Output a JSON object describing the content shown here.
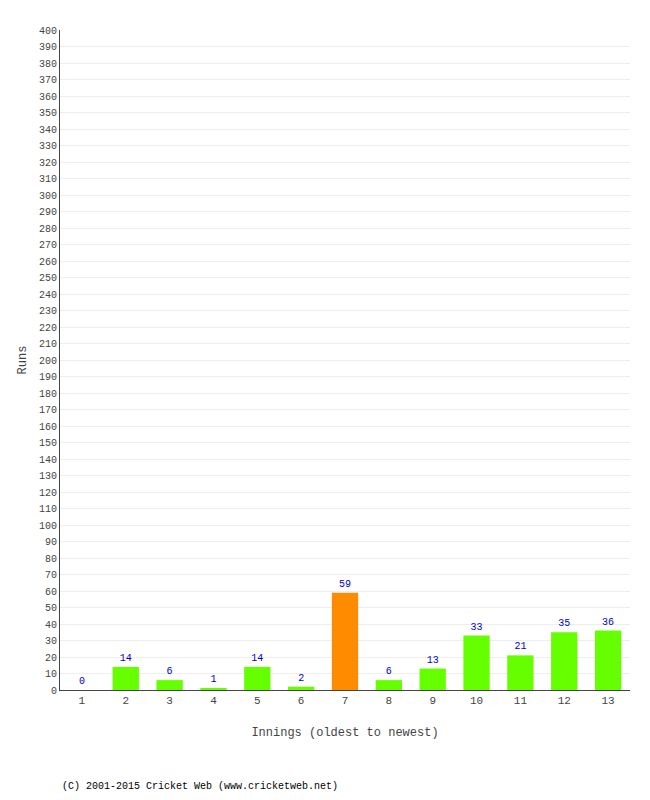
{
  "chart_data": {
    "type": "bar",
    "xlabel": "Innings (oldest to newest)",
    "ylabel": "Runs",
    "categories": [
      1,
      2,
      3,
      4,
      5,
      6,
      7,
      8,
      9,
      10,
      11,
      12,
      13
    ],
    "values": [
      0,
      14,
      6,
      1,
      14,
      2,
      59,
      6,
      13,
      33,
      21,
      35,
      36
    ],
    "colors": [
      "#66ff00",
      "#66ff00",
      "#66ff00",
      "#66ff00",
      "#66ff00",
      "#66ff00",
      "#ff8c00",
      "#66ff00",
      "#66ff00",
      "#66ff00",
      "#66ff00",
      "#66ff00",
      "#66ff00"
    ],
    "ylim": [
      0,
      400
    ],
    "yticks": [
      0,
      10,
      20,
      30,
      40,
      50,
      60,
      70,
      80,
      90,
      100,
      110,
      120,
      130,
      140,
      150,
      160,
      170,
      180,
      190,
      200,
      210,
      220,
      230,
      240,
      250,
      260,
      270,
      280,
      290,
      300,
      310,
      320,
      330,
      340,
      350,
      360,
      370,
      380,
      390,
      400
    ],
    "grid": true,
    "data_labels": true,
    "annotations": [
      "(C) 2001-2015 Cricket Web (www.cricketweb.net)"
    ]
  }
}
